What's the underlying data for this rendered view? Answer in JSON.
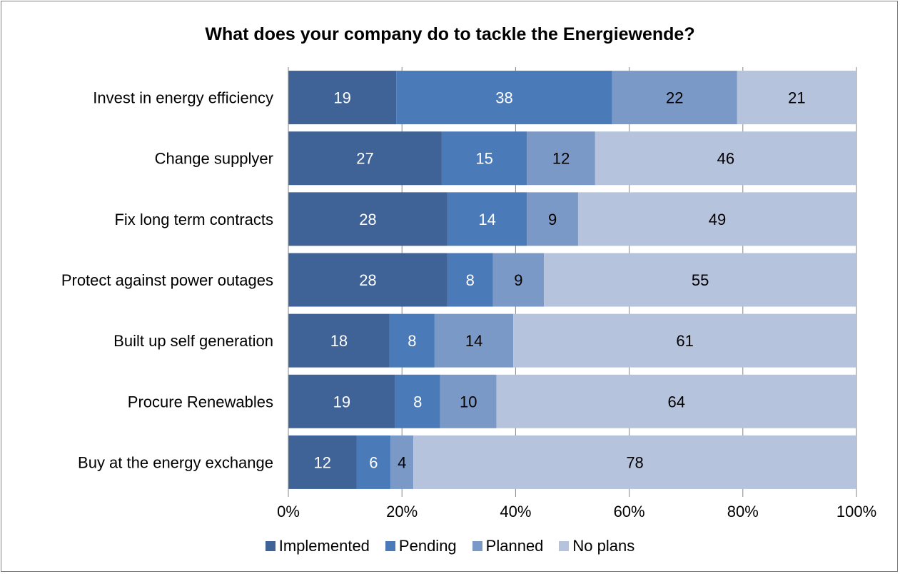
{
  "chart_data": {
    "type": "bar",
    "orientation": "horizontal",
    "stacked": "percent",
    "title": "What does your company do to tackle the Energiewende?",
    "categories": [
      "Invest in energy efficiency",
      "Change supplyer",
      "Fix long term contracts",
      "Protect against power outages",
      "Built up self generation",
      "Procure Renewables",
      "Buy at the energy exchange"
    ],
    "series": [
      {
        "name": "Implemented",
        "color": "#3f6396",
        "label_color": "#ffffff",
        "values": [
          19,
          27,
          28,
          28,
          18,
          19,
          12
        ]
      },
      {
        "name": "Pending",
        "color": "#4a7ab8",
        "label_color": "#ffffff",
        "values": [
          38,
          15,
          14,
          8,
          8,
          8,
          6
        ]
      },
      {
        "name": "Planned",
        "color": "#7b99c7",
        "label_color": "#000000",
        "values": [
          22,
          12,
          9,
          9,
          14,
          10,
          4
        ]
      },
      {
        "name": "No plans",
        "color": "#b6c3dd",
        "label_color": "#000000",
        "values": [
          21,
          46,
          49,
          55,
          61,
          64,
          78
        ]
      }
    ],
    "xlim": [
      0,
      100
    ],
    "x_ticks": [
      "0%",
      "20%",
      "40%",
      "60%",
      "80%",
      "100%"
    ],
    "grid": true,
    "legend_position": "bottom"
  }
}
